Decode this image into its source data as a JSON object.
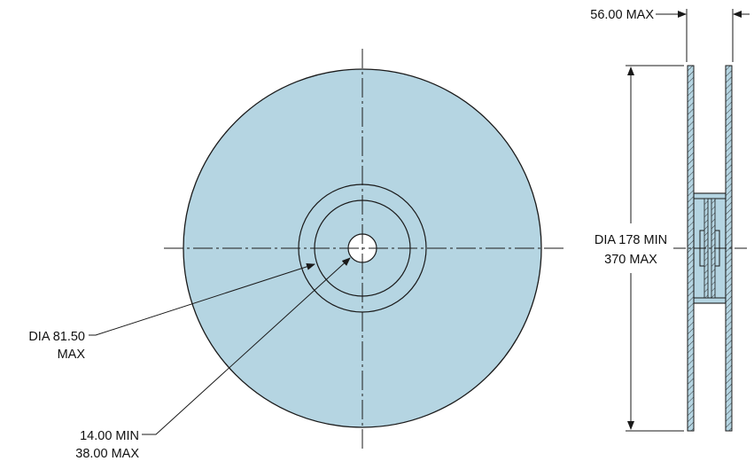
{
  "colors": {
    "fill": "#b5d5e2",
    "outline": "#1a1a1a",
    "centerline": "#1a1a1a",
    "background": "#ffffff"
  },
  "front_view": {
    "hub_dia_label_line1": "DIA 81.50",
    "hub_dia_label_line2": "MAX",
    "arbor_label_line1": "14.00 MIN",
    "arbor_label_line2": "38.00 MAX"
  },
  "side_view": {
    "width_label": "56.00 MAX",
    "reel_dia_label_line1": "DIA 178 MIN",
    "reel_dia_label_line2": "370 MAX"
  }
}
